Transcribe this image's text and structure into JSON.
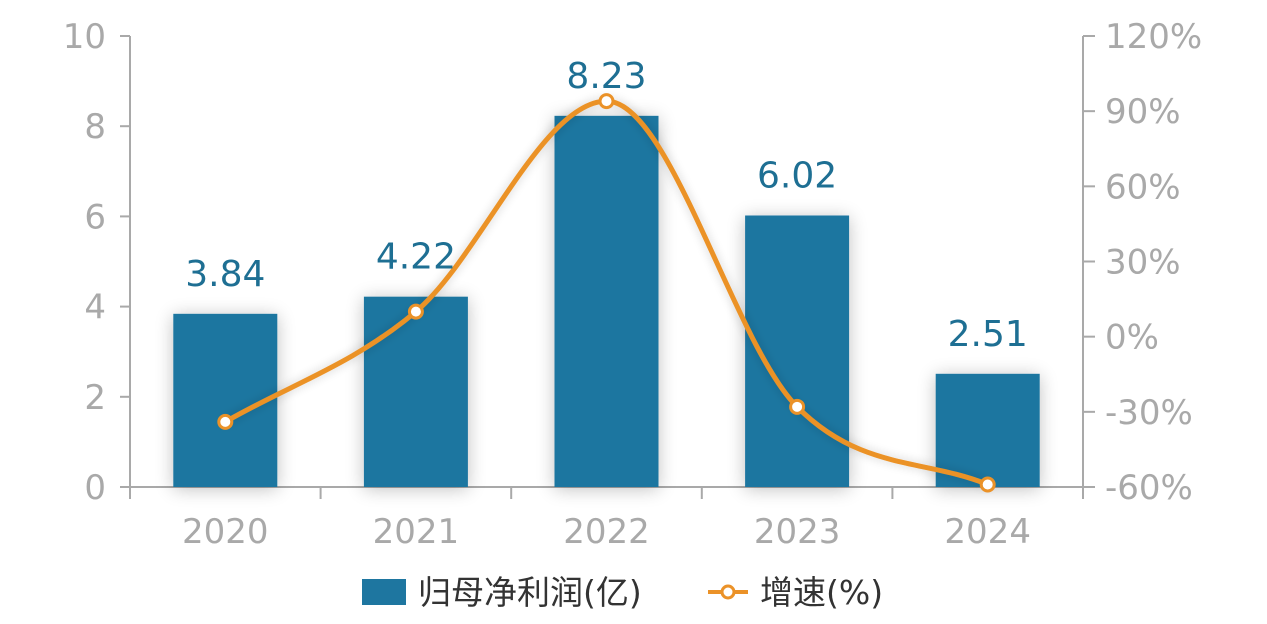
{
  "colors": {
    "bar": "#1e76a0",
    "line": "#eb9228",
    "value_label": "#1e6f93",
    "axis": "#a9a9a9",
    "point_fill": "#ffffff"
  },
  "chart_data": {
    "type": "bar",
    "categories": [
      "2020",
      "2021",
      "2022",
      "2023",
      "2024"
    ],
    "series": [
      {
        "name": "归母净利润(亿)",
        "type": "bar",
        "axis": "left",
        "values": [
          3.84,
          4.22,
          8.23,
          6.02,
          2.51
        ],
        "labels": [
          "3.84",
          "4.22",
          "8.23",
          "6.02",
          "2.51"
        ]
      },
      {
        "name": "增速(%)",
        "type": "line",
        "axis": "right",
        "smooth": true,
        "values": [
          -34,
          10,
          94,
          -28,
          -59
        ]
      }
    ],
    "y_left": {
      "min": 0,
      "max": 10,
      "ticks": [
        0,
        2,
        4,
        6,
        8,
        10
      ],
      "tick_labels": [
        "0",
        "2",
        "4",
        "6",
        "8",
        "10"
      ]
    },
    "y_right": {
      "min": -60,
      "max": 120,
      "ticks": [
        -60,
        -30,
        0,
        30,
        60,
        90,
        120
      ],
      "tick_labels": [
        "-60%",
        "-30%",
        "0%",
        "30%",
        "60%",
        "90%",
        "120%"
      ]
    },
    "legend": {
      "position": "bottom",
      "items": [
        "归母净利润(亿)",
        "增速(%)"
      ]
    },
    "grid": false
  }
}
